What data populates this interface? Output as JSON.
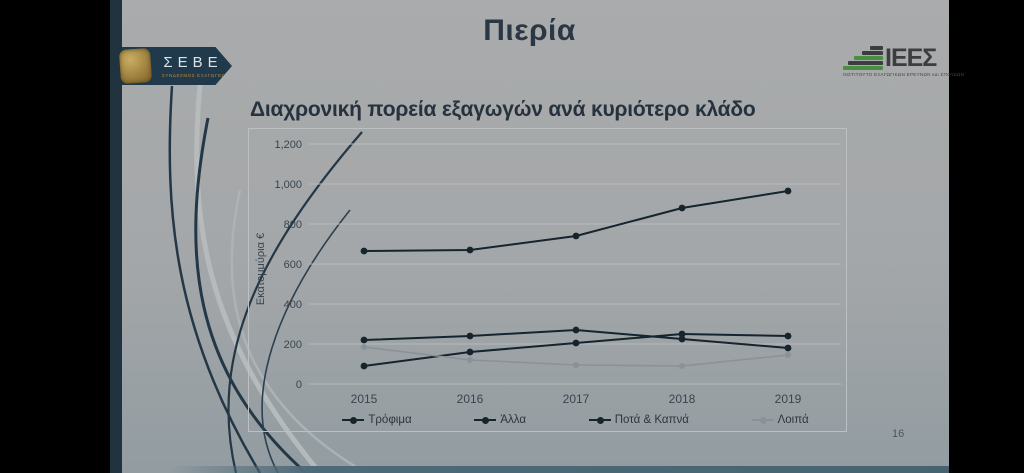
{
  "page": {
    "title": "Πιερία",
    "page_number": "16"
  },
  "logos": {
    "seve": {
      "name": "ΣΕΒΕ",
      "tagline": "ΣΥΝΔΕΣΜΟΣ ΕΞΑΓΩΓΕΩΝ"
    },
    "iees": {
      "name": "ΙΕΕΣ",
      "tagline": "ΙΝΣΤΙΤΟΥΤΟ ΕΞΑΓΩΓΙΚΩΝ ΕΡΕΥΝΩΝ και ΣΠΟΥΔΩΝ"
    }
  },
  "chart_data": {
    "type": "line",
    "title": "Διαχρονική πορεία εξαγωγών ανά κυριότερο κλάδο",
    "ylabel": "Εκατομμύρια €",
    "categories": [
      "2015",
      "2016",
      "2017",
      "2018",
      "2019"
    ],
    "series": [
      {
        "name": "Τρόφιμα",
        "color": "#16242e",
        "values": [
          665,
          670,
          740,
          880,
          965
        ]
      },
      {
        "name": "Άλλα",
        "color": "#16242e",
        "values": [
          220,
          240,
          270,
          225,
          180
        ]
      },
      {
        "name": "Ποτά & Καπνά",
        "color": "#16242e",
        "values": [
          90,
          160,
          205,
          250,
          240
        ]
      },
      {
        "name": "Λοιπά",
        "color": "#8b9296",
        "values": [
          185,
          120,
          95,
          90,
          145
        ]
      }
    ],
    "ylim": [
      0,
      1200
    ],
    "ytick_step": 200,
    "yticks": [
      "0",
      "200",
      "400",
      "600",
      "800",
      "1,000",
      "1,200"
    ],
    "grid": true,
    "legend_position": "bottom"
  },
  "colors": {
    "slide_bg": "#a6a9ab",
    "accent_navy": "#20333f",
    "dark_series": "#16242e",
    "gray_series": "#8b9296",
    "gridline": "#b7babc",
    "tick_text": "#39454e",
    "teal_bar": "#4e6a78",
    "gold": "#b3934d",
    "iees_green": "#4a8f3f",
    "iees_dark": "#3b3d3e"
  }
}
